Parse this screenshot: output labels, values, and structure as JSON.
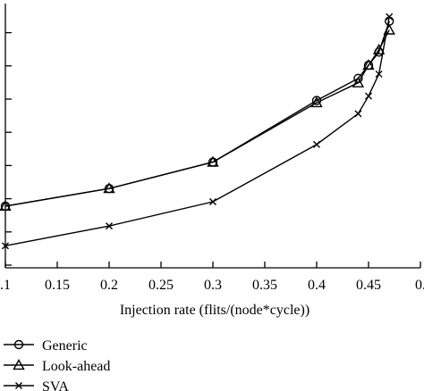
{
  "chart_data": {
    "type": "line",
    "title": "",
    "xlabel": "Injection rate (flits/(node*cycle))",
    "ylabel": "",
    "xlim": [
      0.1,
      0.5
    ],
    "x_tick_labels": [
      ".1",
      "0.15",
      "0.2",
      "0.25",
      "0.3",
      "0.35",
      "0.4",
      "0.45",
      "0."
    ],
    "x_tick_values": [
      0.1,
      0.15,
      0.2,
      0.25,
      0.3,
      0.35,
      0.4,
      0.45,
      0.5
    ],
    "grid": false,
    "legend_position": "bottom-left",
    "series": [
      {
        "name": "Generic",
        "marker": "circle",
        "x": [
          0.1,
          0.2,
          0.3,
          0.4,
          0.44,
          0.45,
          0.46,
          0.47
        ],
        "y": [
          2.2,
          2.6,
          3.2,
          4.6,
          5.1,
          5.4,
          5.7,
          6.4
        ]
      },
      {
        "name": "Look-ahead",
        "marker": "triangle",
        "x": [
          0.1,
          0.2,
          0.3,
          0.4,
          0.44,
          0.45,
          0.46,
          0.47
        ],
        "y": [
          2.2,
          2.6,
          3.2,
          4.55,
          5.0,
          5.4,
          5.75,
          6.2
        ]
      },
      {
        "name": "SVA",
        "marker": "x",
        "x": [
          0.1,
          0.2,
          0.3,
          0.4,
          0.44,
          0.45,
          0.46,
          0.47
        ],
        "y": [
          1.3,
          1.75,
          2.3,
          3.6,
          4.3,
          4.7,
          5.2,
          6.5
        ]
      }
    ]
  }
}
